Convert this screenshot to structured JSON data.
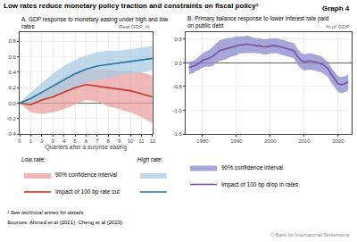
{
  "title": "Low rates reduce monetary policy traction and constraints on fiscal policy¹",
  "annotations": [
    "Graph 4",
    "¹ See technical annex for details.",
    "Sources: Ahmed et al (2021); Cheng et al (2023).",
    "© Bank for International Settlements"
  ],
  "chart_data": [
    {
      "type": "line",
      "title": "A. GDP response to monetary easing under high and low\nrates",
      "ylabel": "Real GDP, %",
      "xlabel": "Quarters after a surprise easing",
      "x": [
        0,
        1,
        2,
        3,
        4,
        5,
        6,
        7,
        8,
        9,
        10,
        11,
        12
      ],
      "xlim": [
        0,
        12
      ],
      "xticks": [
        0,
        1,
        2,
        3,
        4,
        5,
        6,
        7,
        8,
        9,
        10,
        11,
        12
      ],
      "ylim": [
        -0.4,
        0.92
      ],
      "yticks": [
        -0.4,
        -0.2,
        {
          "value": 0.0,
          "label": "0.0"
        },
        0.2,
        0.4,
        0.6,
        0.8
      ],
      "grid": true,
      "annotations": [
        "Low rate:",
        "High rate:"
      ],
      "series": [
        {
          "name": "Impact of 100 bp rate cut",
          "color": "#c0392b",
          "values": [
            0.0,
            -0.02,
            0.04,
            0.08,
            0.14,
            0.2,
            0.24,
            0.22,
            0.2,
            0.18,
            0.16,
            0.12,
            0.08
          ]
        },
        {
          "name": "90% confidence interval",
          "type": "band",
          "color": "#e8a0a0",
          "lower": [
            0.0,
            -0.12,
            -0.14,
            -0.12,
            -0.08,
            -0.02,
            0.04,
            0.02,
            -0.04,
            -0.08,
            -0.12,
            -0.18,
            -0.26
          ],
          "upper": [
            0.0,
            0.06,
            0.14,
            0.24,
            0.34,
            0.4,
            0.44,
            0.44,
            0.44,
            0.42,
            0.42,
            0.4,
            0.36
          ]
        },
        {
          "name": null,
          "color": "#2471a3",
          "values": [
            0.0,
            0.06,
            0.14,
            0.22,
            0.3,
            0.38,
            0.44,
            0.48,
            0.5,
            0.52,
            0.54,
            0.56,
            0.58
          ]
        },
        {
          "name": null,
          "type": "band",
          "color": "#a9cce3",
          "lower": [
            0.0,
            -0.02,
            0.04,
            0.08,
            0.14,
            0.2,
            0.26,
            0.3,
            0.32,
            0.36,
            0.38,
            0.4,
            0.42
          ],
          "upper": [
            0.0,
            0.14,
            0.26,
            0.38,
            0.48,
            0.56,
            0.62,
            0.66,
            0.68,
            0.68,
            0.7,
            0.72,
            0.74
          ]
        }
      ]
    },
    {
      "type": "line",
      "title": "B. Primary balance response to lower interest rate paid\non public debt",
      "ylabel": "% of GDP",
      "x": [
        1976,
        1977,
        1978,
        1979,
        1980,
        1981,
        1982,
        1983,
        1984,
        1985,
        1986,
        1987,
        1988,
        1989,
        1990,
        1991,
        1992,
        1993,
        1994,
        1995,
        1996,
        1997,
        1998,
        1999,
        2000,
        2001,
        2002,
        2003,
        2004,
        2005,
        2006,
        2007,
        2008,
        2009,
        2010,
        2011,
        2012,
        2013,
        2014,
        2015,
        2016,
        2017,
        2018,
        2019,
        2020,
        2021,
        2022,
        2023
      ],
      "xlim": [
        1975,
        2024
      ],
      "xticks": [
        1980,
        1990,
        2000,
        2010,
        2020
      ],
      "ylim": [
        -1.5,
        0.65
      ],
      "yticks": [
        -1.5,
        {
          "value": -1.0,
          "label": "-1.0"
        },
        -0.5,
        {
          "value": 0.0,
          "label": "0.0"
        },
        0.5
      ],
      "grid": true,
      "series": [
        {
          "name": "Impact of 100 bp drop in rates",
          "color": "#7b4fa6",
          "values": [
            -0.1,
            -0.08,
            -0.05,
            0.0,
            0.05,
            0.08,
            0.1,
            0.14,
            0.2,
            0.26,
            0.28,
            0.3,
            0.32,
            0.34,
            0.36,
            0.38,
            0.38,
            0.4,
            0.38,
            0.38,
            0.36,
            0.36,
            0.34,
            0.34,
            0.36,
            0.36,
            0.36,
            0.34,
            0.32,
            0.3,
            0.28,
            0.26,
            0.14,
            0.06,
            0.02,
            0.04,
            0.04,
            0.02,
            0.0,
            -0.02,
            -0.06,
            -0.12,
            -0.24,
            -0.34,
            -0.44,
            -0.46,
            -0.44,
            -0.4
          ]
        },
        {
          "name": "90% confidence interval",
          "type": "band",
          "color": "#8888cc",
          "lower": [
            -0.24,
            -0.22,
            -0.18,
            -0.14,
            -0.1,
            -0.08,
            -0.08,
            -0.06,
            0.0,
            0.04,
            0.06,
            0.08,
            0.12,
            0.14,
            0.16,
            0.2,
            0.2,
            0.22,
            0.2,
            0.22,
            0.2,
            0.2,
            0.18,
            0.18,
            0.2,
            0.2,
            0.2,
            0.18,
            0.16,
            0.14,
            0.12,
            0.1,
            -0.04,
            -0.12,
            -0.16,
            -0.14,
            -0.14,
            -0.16,
            -0.18,
            -0.2,
            -0.24,
            -0.3,
            -0.42,
            -0.52,
            -0.62,
            -0.64,
            -0.62,
            -0.58
          ],
          "upper": [
            0.02,
            0.04,
            0.08,
            0.14,
            0.2,
            0.24,
            0.28,
            0.34,
            0.42,
            0.48,
            0.5,
            0.52,
            0.52,
            0.54,
            0.56,
            0.56,
            0.56,
            0.58,
            0.56,
            0.54,
            0.52,
            0.52,
            0.5,
            0.5,
            0.52,
            0.52,
            0.52,
            0.5,
            0.48,
            0.46,
            0.44,
            0.42,
            0.3,
            0.22,
            0.18,
            0.2,
            0.2,
            0.18,
            0.16,
            0.14,
            0.08,
            0.02,
            -0.1,
            -0.2,
            -0.28,
            -0.3,
            -0.28,
            -0.24
          ]
        }
      ]
    }
  ]
}
